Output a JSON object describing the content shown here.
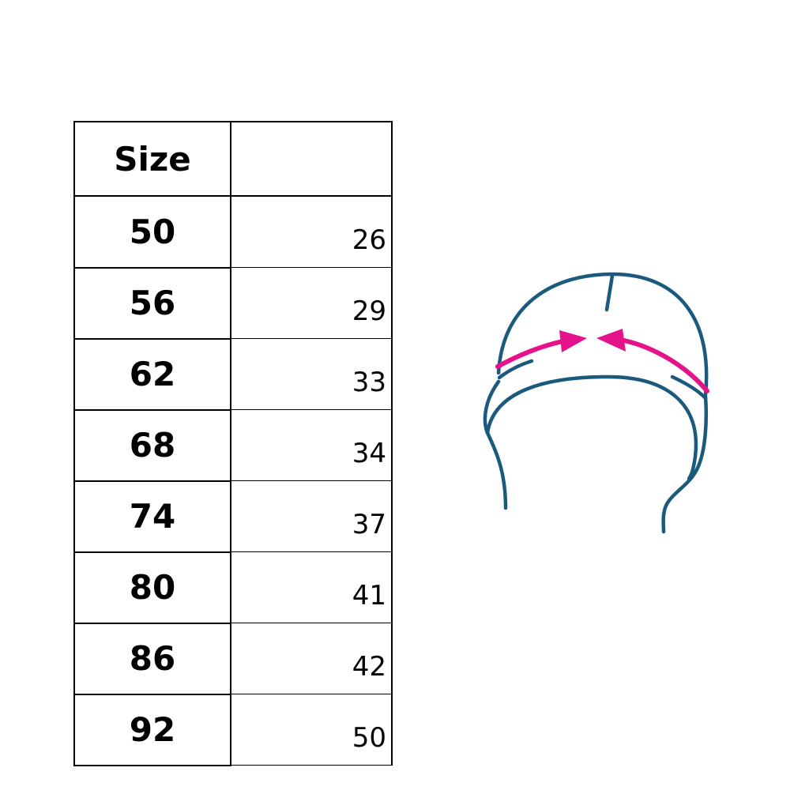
{
  "table": {
    "headers": [
      "Size",
      ""
    ],
    "rows": [
      {
        "size": "50",
        "value": "26"
      },
      {
        "size": "56",
        "value": "29"
      },
      {
        "size": "62",
        "value": "33"
      },
      {
        "size": "68",
        "value": "34"
      },
      {
        "size": "74",
        "value": "37"
      },
      {
        "size": "80",
        "value": "41"
      },
      {
        "size": "86",
        "value": "42"
      },
      {
        "size": "92",
        "value": "50"
      }
    ]
  },
  "illustration": {
    "icon": "hat-head-circumference-icon",
    "line_color": "#1b5a7d",
    "arrow_color": "#e5128c"
  }
}
